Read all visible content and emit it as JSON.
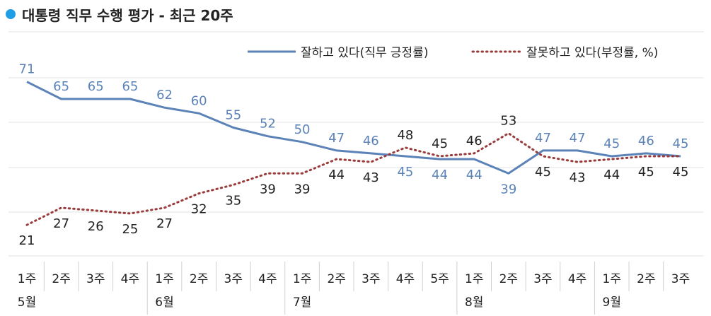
{
  "chart_data": {
    "type": "line",
    "title": "대통령 직무 수행 평가 - 최근 20주",
    "weeks": [
      "1주",
      "2주",
      "3주",
      "4주",
      "1주",
      "2주",
      "3주",
      "4주",
      "1주",
      "2주",
      "3주",
      "4주",
      "5주",
      "1주",
      "2주",
      "3주",
      "4주",
      "1주",
      "2주",
      "3주"
    ],
    "months": [
      {
        "label": "5월",
        "index": 0
      },
      {
        "label": "6월",
        "index": 4
      },
      {
        "label": "7월",
        "index": 8
      },
      {
        "label": "8월",
        "index": 13
      },
      {
        "label": "9월",
        "index": 17
      }
    ],
    "series": [
      {
        "name": "잘하고 있다(직무 긍정률)",
        "color": "#5b83b8",
        "style": "solid",
        "values": [
          71,
          65,
          65,
          65,
          62,
          60,
          55,
          52,
          50,
          47,
          46,
          45,
          44,
          44,
          39,
          47,
          47,
          45,
          46,
          45
        ]
      },
      {
        "name": "잘못하고 있다(부정률, %)",
        "color": "#9a3b3b",
        "style": "dotted",
        "values": [
          21,
          27,
          26,
          25,
          27,
          32,
          35,
          39,
          39,
          44,
          43,
          48,
          45,
          46,
          53,
          45,
          43,
          44,
          45,
          45
        ]
      }
    ],
    "grid": true,
    "legend_position": "top-right"
  }
}
